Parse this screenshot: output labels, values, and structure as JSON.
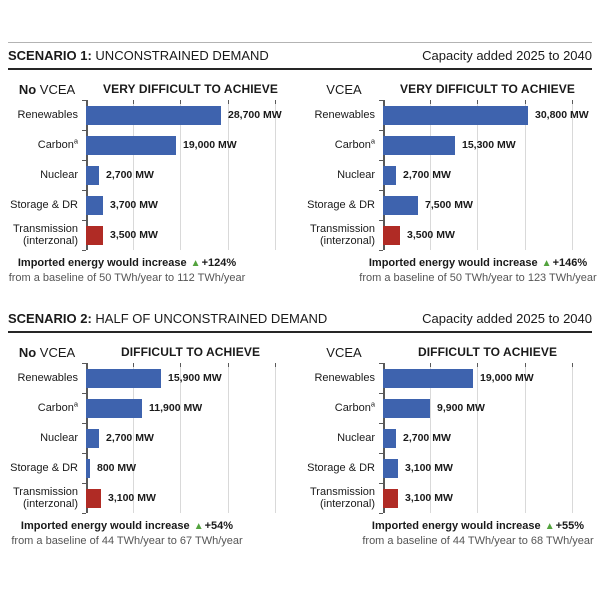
{
  "figure": {
    "background": "#FFFFFF"
  },
  "colors": {
    "bar_blue": "#3E63AE",
    "bar_red": "#B02B25",
    "gridline": "#D9D9D9",
    "axis_line": "#595959",
    "rule_dark": "#262626",
    "top_border": "#B3B3B3",
    "text_black": "#1A1A1A",
    "text_gray": "#555555",
    "increase_green": "#53A33E"
  },
  "scenario1": {
    "title_bold": "SCENARIO 1:",
    "title_rest": "UNCONSTRAINED DEMAND",
    "capacity_label": "Capacity added 2025 to 2040"
  },
  "scenario2": {
    "title_bold": "SCENARIO 2:",
    "title_rest": "HALF OF UNCONSTRAINED DEMAND",
    "capacity_label": "Capacity added 2025 to 2040"
  },
  "chart_data": [
    {
      "type": "bar",
      "orientation": "horizontal",
      "scenario": "Scenario 1: Unconstrained demand",
      "group_label_bold": "No",
      "group_label": "VCEA",
      "subtitle": "VERY DIFFICULT TO ACHIEVE",
      "unit": "MW",
      "xlim_mw": [
        0,
        40000
      ],
      "gridlines_mw": [
        10000,
        20000,
        30000,
        40000
      ],
      "rows": [
        {
          "label": "Renewables",
          "label_sup": "",
          "label_line2": "",
          "value_mw": 28700,
          "value_label": "28,700 MW",
          "color": "blue"
        },
        {
          "label": "Carbon",
          "label_sup": "a",
          "label_line2": "",
          "value_mw": 19000,
          "value_label": "19,000 MW",
          "color": "blue"
        },
        {
          "label": "Nuclear",
          "label_sup": "",
          "label_line2": "",
          "value_mw": 2700,
          "value_label": "2,700 MW",
          "color": "blue"
        },
        {
          "label": "Storage & DR",
          "label_sup": "",
          "label_line2": "",
          "value_mw": 3700,
          "value_label": "3,700 MW",
          "color": "blue"
        },
        {
          "label": "Transmission",
          "label_sup": "",
          "label_line2": "(interzonal)",
          "value_mw": 3500,
          "value_label": "3,500 MW",
          "color": "red"
        }
      ],
      "footer_bold": "Imported energy would increase",
      "footer_change": "+124%",
      "footer_baseline": "from a baseline of 50 TWh/year to 112 TWh/year"
    },
    {
      "type": "bar",
      "orientation": "horizontal",
      "scenario": "Scenario 1: Unconstrained demand",
      "group_label_bold": "",
      "group_label": "VCEA",
      "subtitle": "VERY DIFFICULT TO ACHIEVE",
      "unit": "MW",
      "xlim_mw": [
        0,
        40000
      ],
      "gridlines_mw": [
        10000,
        20000,
        30000,
        40000
      ],
      "rows": [
        {
          "label": "Renewables",
          "label_sup": "",
          "label_line2": "",
          "value_mw": 30800,
          "value_label": "30,800 MW",
          "color": "blue"
        },
        {
          "label": "Carbon",
          "label_sup": "a",
          "label_line2": "",
          "value_mw": 15300,
          "value_label": "15,300 MW",
          "color": "blue"
        },
        {
          "label": "Nuclear",
          "label_sup": "",
          "label_line2": "",
          "value_mw": 2700,
          "value_label": "2,700 MW",
          "color": "blue"
        },
        {
          "label": "Storage & DR",
          "label_sup": "",
          "label_line2": "",
          "value_mw": 7500,
          "value_label": "7,500 MW",
          "color": "blue"
        },
        {
          "label": "Transmission",
          "label_sup": "",
          "label_line2": "(interzonal)",
          "value_mw": 3500,
          "value_label": "3,500 MW",
          "color": "red"
        }
      ],
      "footer_bold": "Imported energy would increase",
      "footer_change": "+146%",
      "footer_baseline": "from a baseline of 50 TWh/year to 123 TWh/year"
    },
    {
      "type": "bar",
      "orientation": "horizontal",
      "scenario": "Scenario 2: Half of unconstrained demand",
      "group_label_bold": "No",
      "group_label": "VCEA",
      "subtitle": "DIFFICULT TO ACHIEVE",
      "unit": "MW",
      "xlim_mw": [
        0,
        40000
      ],
      "gridlines_mw": [
        10000,
        20000,
        30000,
        40000
      ],
      "rows": [
        {
          "label": "Renewables",
          "label_sup": "",
          "label_line2": "",
          "value_mw": 15900,
          "value_label": "15,900 MW",
          "color": "blue"
        },
        {
          "label": "Carbon",
          "label_sup": "a",
          "label_line2": "",
          "value_mw": 11900,
          "value_label": "11,900 MW",
          "color": "blue"
        },
        {
          "label": "Nuclear",
          "label_sup": "",
          "label_line2": "",
          "value_mw": 2700,
          "value_label": "2,700 MW",
          "color": "blue"
        },
        {
          "label": "Storage & DR",
          "label_sup": "",
          "label_line2": "",
          "value_mw": 800,
          "value_label": "800 MW",
          "color": "blue"
        },
        {
          "label": "Transmission",
          "label_sup": "",
          "label_line2": "(interzonal)",
          "value_mw": 3100,
          "value_label": "3,100 MW",
          "color": "red"
        }
      ],
      "footer_bold": "Imported energy would increase",
      "footer_change": "+54%",
      "footer_baseline": "from a baseline of 44 TWh/year to 67 TWh/year"
    },
    {
      "type": "bar",
      "orientation": "horizontal",
      "scenario": "Scenario 2: Half of unconstrained demand",
      "group_label_bold": "",
      "group_label": "VCEA",
      "subtitle": "DIFFICULT TO ACHIEVE",
      "unit": "MW",
      "xlim_mw": [
        0,
        40000
      ],
      "gridlines_mw": [
        10000,
        20000,
        30000,
        40000
      ],
      "rows": [
        {
          "label": "Renewables",
          "label_sup": "",
          "label_line2": "",
          "value_mw": 19000,
          "value_label": "19,000 MW",
          "color": "blue"
        },
        {
          "label": "Carbon",
          "label_sup": "a",
          "label_line2": "",
          "value_mw": 9900,
          "value_label": "9,900 MW",
          "color": "blue"
        },
        {
          "label": "Nuclear",
          "label_sup": "",
          "label_line2": "",
          "value_mw": 2700,
          "value_label": "2,700 MW",
          "color": "blue"
        },
        {
          "label": "Storage & DR",
          "label_sup": "",
          "label_line2": "",
          "value_mw": 3100,
          "value_label": "3,100 MW",
          "color": "blue"
        },
        {
          "label": "Transmission",
          "label_sup": "",
          "label_line2": "(interzonal)",
          "value_mw": 3100,
          "value_label": "3,100 MW",
          "color": "red"
        }
      ],
      "footer_bold": "Imported energy would increase",
      "footer_change": "+55%",
      "footer_baseline": "from a baseline of 44 TWh/year to 68 TWh/year"
    }
  ]
}
